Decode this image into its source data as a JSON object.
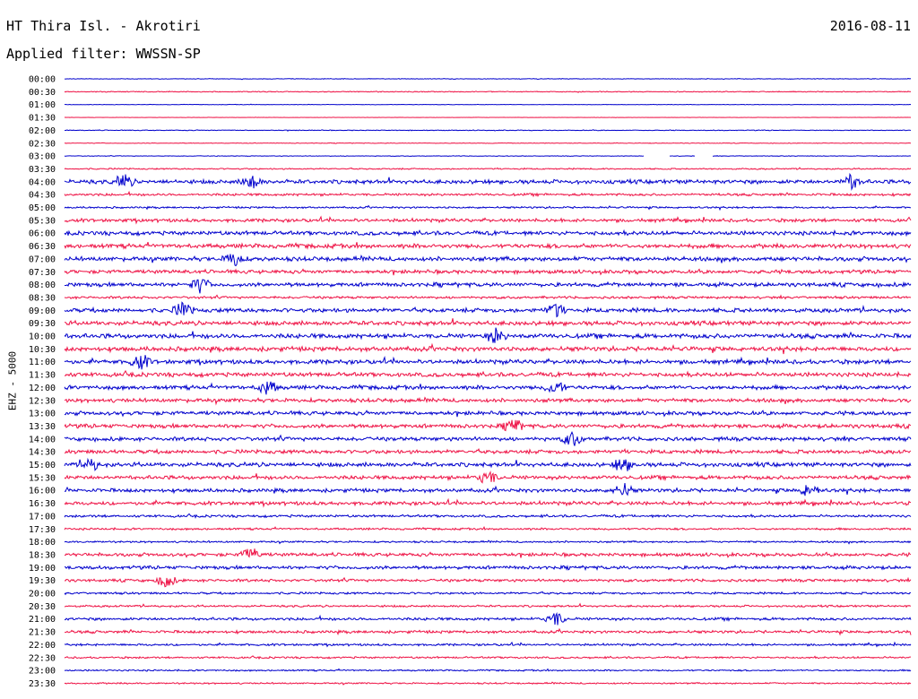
{
  "header": {
    "station": "HT Thira Isl. - Akrotiri",
    "date": "2016-08-11",
    "filter": "Applied filter: WWSSN-SP"
  },
  "chart_data": {
    "type": "line",
    "ylabel": "EHZ - 5000",
    "colors": {
      "even_row": "#0000cc",
      "odd_row": "#ee1144"
    },
    "rows": [
      "00:00",
      "00:30",
      "01:00",
      "01:30",
      "02:00",
      "02:30",
      "03:00",
      "03:30",
      "04:00",
      "04:30",
      "05:00",
      "05:30",
      "06:00",
      "06:30",
      "07:00",
      "07:30",
      "08:00",
      "08:30",
      "09:00",
      "09:30",
      "10:00",
      "10:30",
      "11:00",
      "11:30",
      "12:00",
      "12:30",
      "13:00",
      "13:30",
      "14:00",
      "14:30",
      "15:00",
      "15:30",
      "16:00",
      "16:30",
      "17:00",
      "17:30",
      "18:00",
      "18:30",
      "19:00",
      "19:30",
      "20:00",
      "20:30",
      "21:00",
      "21:30",
      "22:00",
      "22:30",
      "23:00",
      "23:30"
    ],
    "amplitude_level": [
      0.4,
      0.6,
      0.3,
      0.2,
      0.5,
      0.4,
      0.4,
      0.9,
      2.6,
      1.6,
      1.2,
      2.2,
      2.6,
      2.8,
      2.8,
      2.4,
      2.6,
      1.6,
      2.7,
      2.8,
      3.0,
      2.9,
      2.8,
      2.7,
      2.6,
      2.5,
      2.5,
      2.6,
      2.5,
      2.5,
      2.7,
      2.5,
      2.4,
      2.4,
      1.6,
      1.3,
      1.2,
      2.2,
      2.2,
      1.8,
      1.4,
      1.3,
      1.8,
      1.8,
      1.4,
      1.2,
      1.0,
      1.0
    ],
    "events": [
      {
        "row": "04:00",
        "t": 0.07
      },
      {
        "row": "04:00",
        "t": 0.22
      },
      {
        "row": "04:00",
        "t": 0.93
      },
      {
        "row": "07:00",
        "t": 0.2
      },
      {
        "row": "08:00",
        "t": 0.16
      },
      {
        "row": "09:00",
        "t": 0.14
      },
      {
        "row": "09:00",
        "t": 0.58
      },
      {
        "row": "10:00",
        "t": 0.51
      },
      {
        "row": "11:00",
        "t": 0.09
      },
      {
        "row": "12:00",
        "t": 0.24
      },
      {
        "row": "12:00",
        "t": 0.58
      },
      {
        "row": "13:30",
        "t": 0.53
      },
      {
        "row": "14:00",
        "t": 0.6
      },
      {
        "row": "15:00",
        "t": 0.03
      },
      {
        "row": "15:00",
        "t": 0.66
      },
      {
        "row": "15:30",
        "t": 0.5
      },
      {
        "row": "16:00",
        "t": 0.66
      },
      {
        "row": "16:00",
        "t": 0.88
      },
      {
        "row": "18:30",
        "t": 0.22
      },
      {
        "row": "19:30",
        "t": 0.12
      },
      {
        "row": "21:00",
        "t": 0.58
      }
    ],
    "gaps": [
      {
        "row": "03:00",
        "from": 0.685,
        "to": 0.715
      },
      {
        "row": "03:00",
        "from": 0.745,
        "to": 0.765
      }
    ]
  }
}
